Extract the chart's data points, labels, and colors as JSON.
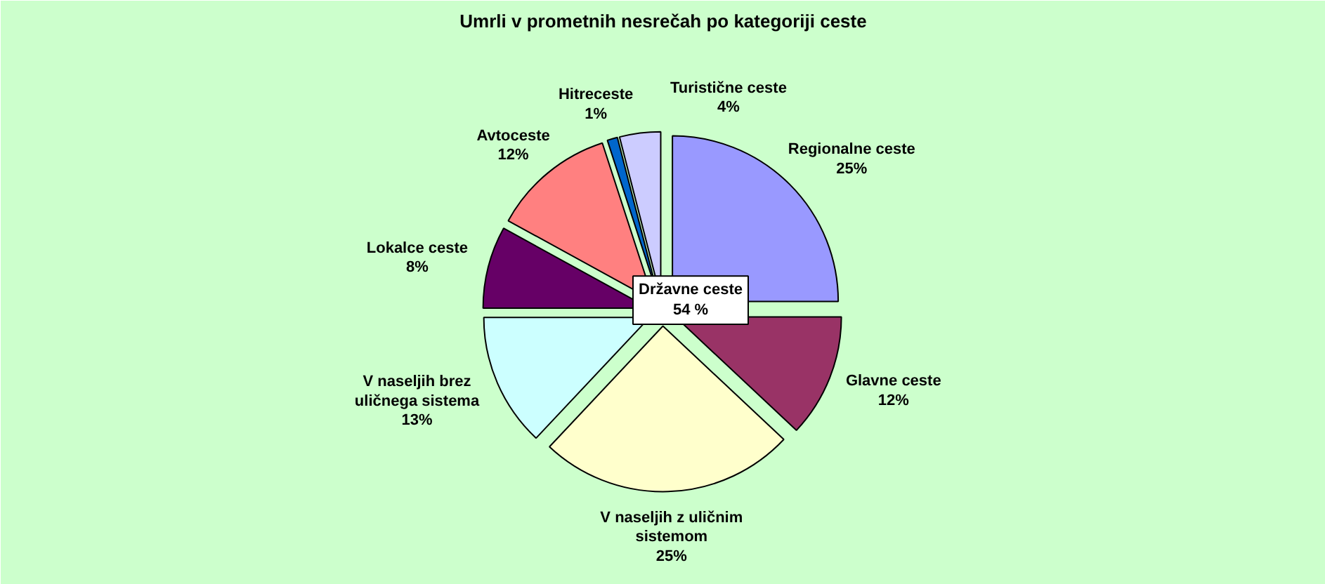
{
  "chart_data": {
    "type": "pie",
    "title": "Umrli v prometnih nesrečah po kategoriji ceste",
    "categories": [
      "Regionalne ceste",
      "Glavne ceste",
      "V naseljih z uličnim sistemom",
      "V naseljih brez uličnega sistema",
      "Lokalce ceste",
      "Avtoceste",
      "Hitreceste",
      "Turistične ceste"
    ],
    "values": [
      25,
      12,
      25,
      13,
      8,
      12,
      1,
      4
    ],
    "colors": [
      "#9999ff",
      "#993366",
      "#ffffcc",
      "#ccffff",
      "#660066",
      "#ff8080",
      "#0066cc",
      "#ccccff"
    ],
    "value_labels": [
      "25%",
      "12%",
      "25%",
      "13%",
      "8%",
      "12%",
      "1%",
      "4%"
    ],
    "annotations": [
      "Državne ceste 54 %"
    ]
  }
}
